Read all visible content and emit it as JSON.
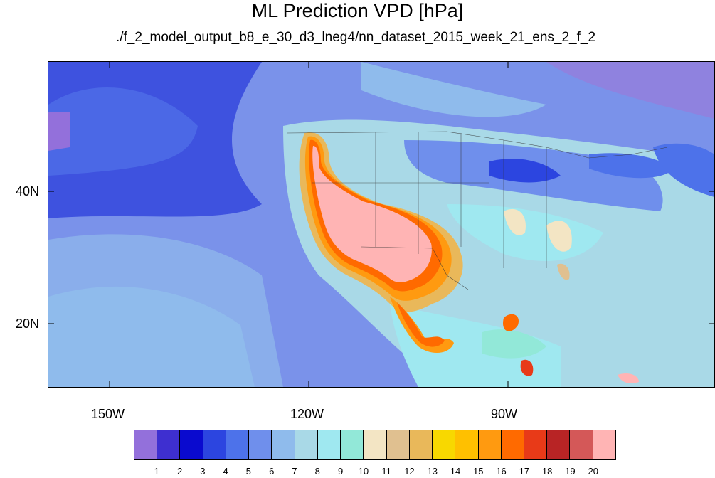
{
  "title": "ML Prediction VPD [hPa]",
  "subtitle": "./f_2_model_output_b8_e_30_d3_lneg4/nn_dataset_2015_week_21_ens_2_f_2",
  "lat_labels": [
    "40N",
    "20N"
  ],
  "lon_labels": [
    "150W",
    "120W",
    "90W"
  ],
  "colorbar": {
    "colors": [
      "#9370db",
      "#3e2fd0",
      "#0a0acf",
      "#2c45e0",
      "#4d72ea",
      "#6f8fec",
      "#8fbbec",
      "#a9d9e7",
      "#9fe8f0",
      "#92e8d8",
      "#f3e5c4",
      "#e0c090",
      "#e9b85a",
      "#f8d800",
      "#ffc000",
      "#ff9a10",
      "#ff6a00",
      "#e83a18",
      "#b82425",
      "#d45858",
      "#ffb4b4"
    ],
    "labels": [
      "1",
      "2",
      "3",
      "4",
      "5",
      "6",
      "7",
      "8",
      "9",
      "10",
      "11",
      "12",
      "13",
      "14",
      "15",
      "16",
      "17",
      "18",
      "19",
      "20"
    ]
  }
}
